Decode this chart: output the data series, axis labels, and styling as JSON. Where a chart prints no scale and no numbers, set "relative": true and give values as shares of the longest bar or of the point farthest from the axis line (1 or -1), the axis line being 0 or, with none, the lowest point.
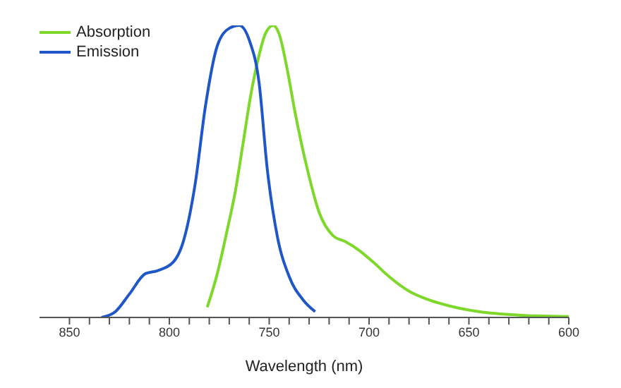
{
  "chart_data": {
    "type": "line",
    "xlabel": "Wavelength (nm)",
    "relative": true,
    "xlim": [
      865,
      600
    ],
    "xticks": [
      850,
      {
        "value": 840,
        "label": null
      },
      {
        "value": 830,
        "label": null
      },
      {
        "value": 820,
        "label": null
      },
      {
        "value": 810,
        "label": null
      },
      800,
      {
        "value": 790,
        "label": null
      },
      {
        "value": 780,
        "label": null
      },
      {
        "value": 770,
        "label": null
      },
      {
        "value": 760,
        "label": null
      },
      750,
      {
        "value": 740,
        "label": null
      },
      {
        "value": 730,
        "label": null
      },
      {
        "value": 720,
        "label": null
      },
      {
        "value": 710,
        "label": null
      },
      700,
      {
        "value": 690,
        "label": null
      },
      {
        "value": 680,
        "label": null
      },
      {
        "value": 670,
        "label": null
      },
      {
        "value": 660,
        "label": null
      },
      650,
      {
        "value": 640,
        "label": null
      },
      {
        "value": 630,
        "label": null
      },
      {
        "value": 620,
        "label": null
      },
      {
        "value": 610,
        "label": null
      },
      600
    ],
    "series": [
      {
        "name": "Absorption",
        "color": "#7ed82a",
        "x": [
          781,
          776,
          771,
          767,
          763,
          759,
          755,
          752,
          748,
          745,
          741,
          737,
          731,
          725,
          718,
          712,
          705,
          698,
          690,
          680,
          670,
          660,
          645,
          625,
          600
        ],
        "values": [
          0.035,
          0.15,
          0.3,
          0.43,
          0.6,
          0.77,
          0.9,
          0.97,
          1,
          0.97,
          0.85,
          0.7,
          0.51,
          0.36,
          0.28,
          0.26,
          0.23,
          0.19,
          0.14,
          0.09,
          0.06,
          0.04,
          0.02,
          0.008,
          0.003
        ]
      },
      {
        "name": "Emission",
        "color": "#1f57c8",
        "x": [
          834,
          827,
          820,
          812,
          806,
          798,
          793,
          787,
          782,
          776,
          770,
          765,
          760,
          755,
          751,
          746,
          740,
          733,
          727
        ],
        "values": [
          0,
          0.02,
          0.08,
          0.15,
          0.16,
          0.19,
          0.26,
          0.46,
          0.72,
          0.93,
          0.99,
          1,
          0.95,
          0.8,
          0.51,
          0.28,
          0.14,
          0.06,
          0.02
        ]
      }
    ],
    "legend": "top left",
    "marker": "none",
    "line_style": "solid",
    "grid": false
  }
}
